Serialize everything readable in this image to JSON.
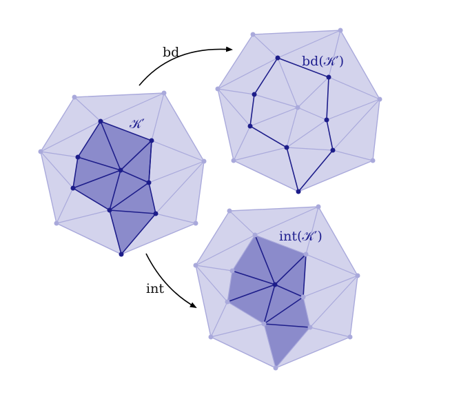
{
  "colors": {
    "complex_fill": "#d3d3ec",
    "subcomplex_fill": "#8b8bcb",
    "light_edge": "#a9a9db",
    "dark_edge": "#1d1d8a",
    "arrow": "#000000"
  },
  "labels": {
    "k_prime": "𝒦′",
    "boundary_map": "bd",
    "boundary_result": "bd(𝒦′)",
    "interior_map": "int",
    "interior_result": "int(𝒦′)"
  }
}
